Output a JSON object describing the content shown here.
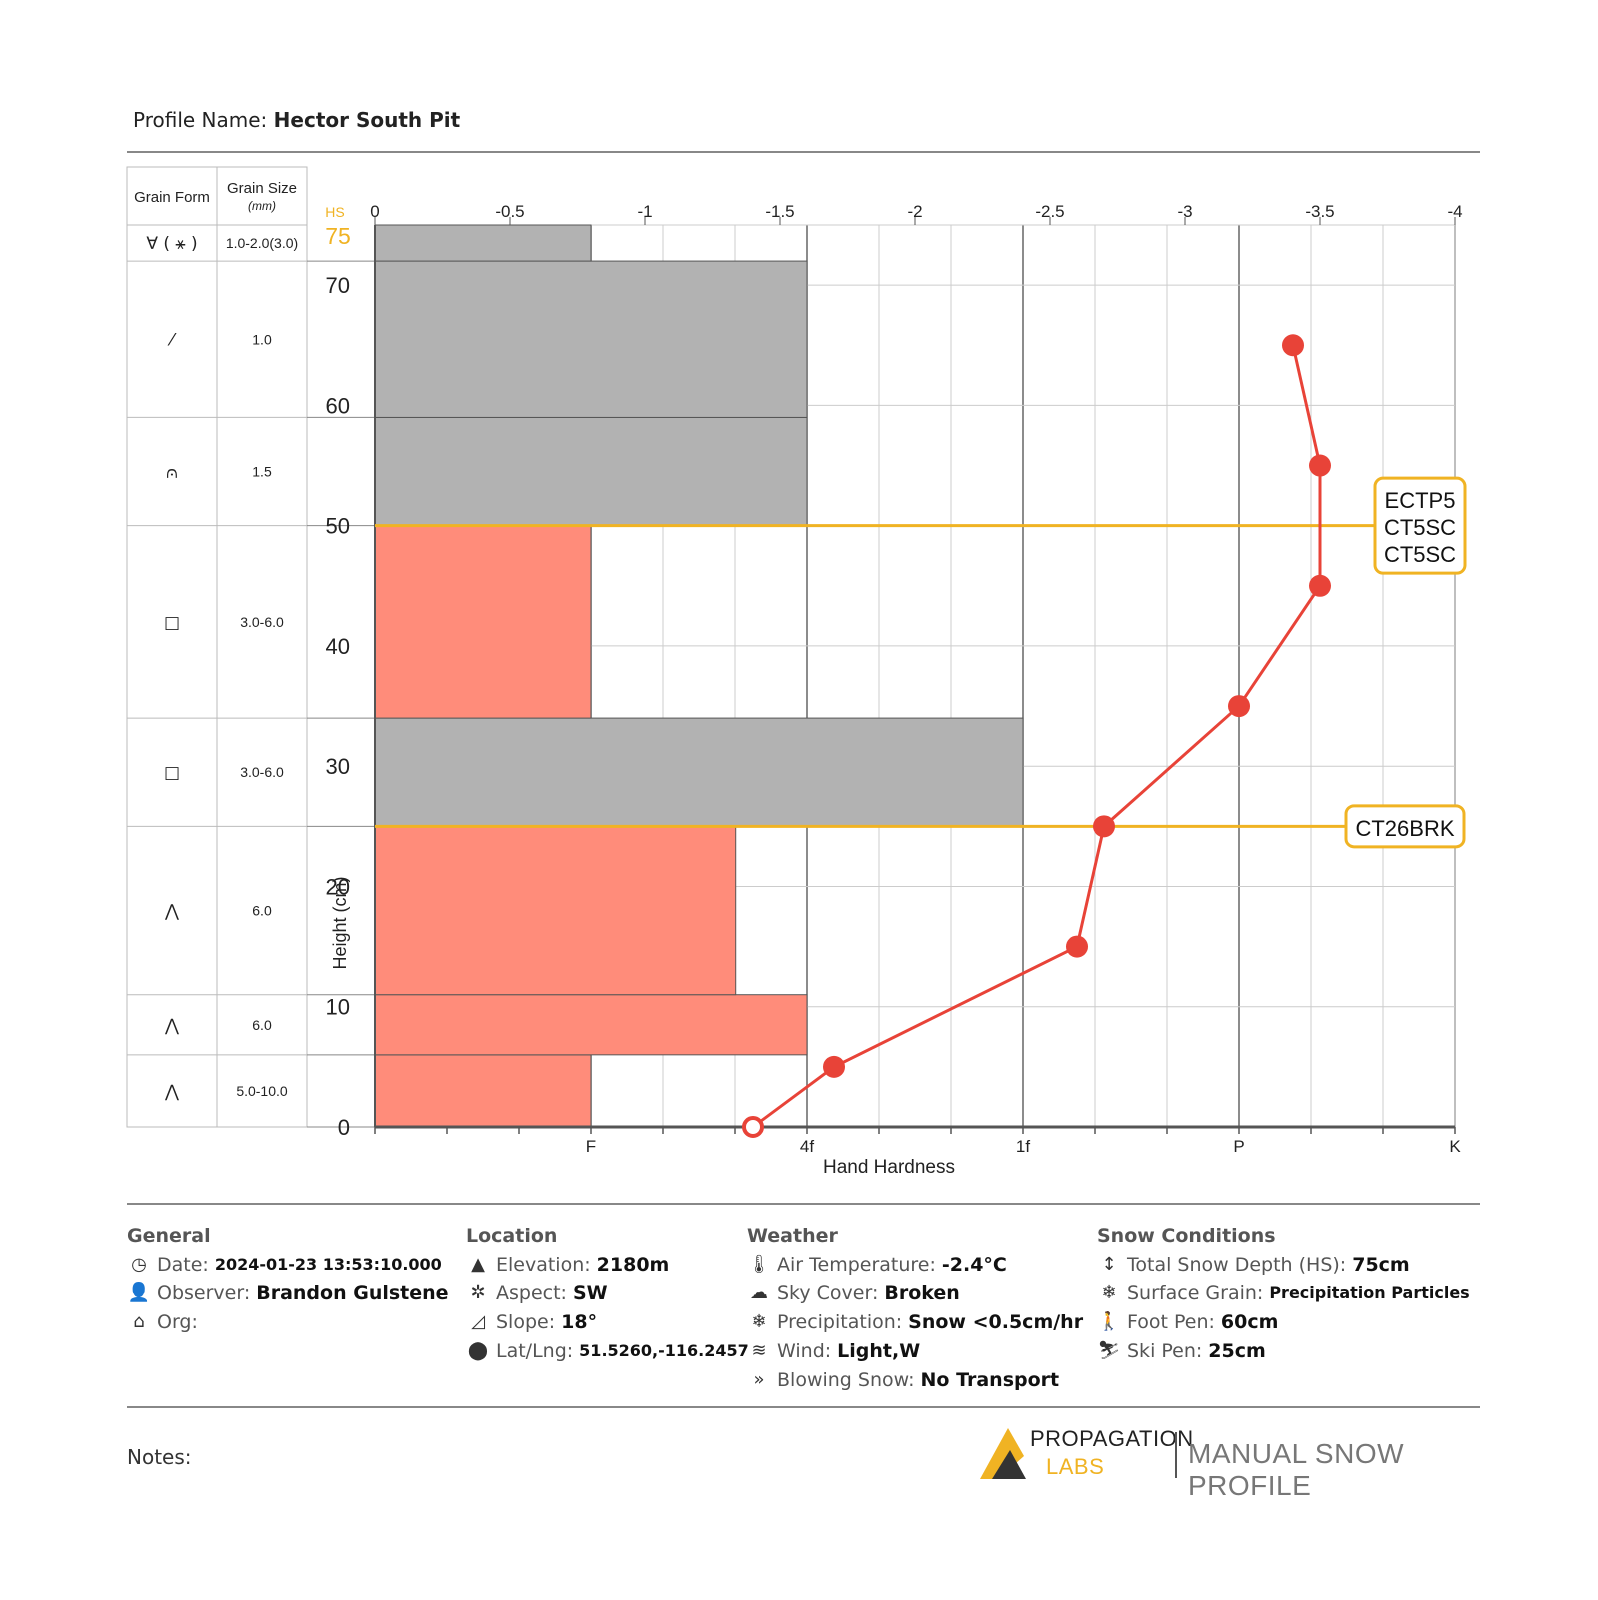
{
  "header": {
    "profile_label": "Profile Name:",
    "profile_name": "Hector South Pit"
  },
  "chart_data": {
    "type": "bar",
    "ylabel": "Height (cm)",
    "xlabel": "Hand Hardness",
    "hs_label": "HS",
    "hs_value": 75,
    "ylim": [
      0,
      75
    ],
    "top_axis": {
      "range": [
        0,
        -4
      ],
      "ticks": [
        "0",
        "-0.5",
        "-1",
        "-1.5",
        "-2",
        "-2.5",
        "-3",
        "-3.5",
        "-4"
      ]
    },
    "y_ticks": [
      "0",
      "10",
      "20",
      "30",
      "40",
      "50",
      "60",
      "70"
    ],
    "hardness_ticks": [
      "F",
      "4f",
      "1f",
      "P",
      "K"
    ],
    "layers": [
      {
        "bottom": 0,
        "top": 6,
        "hardness": 1,
        "color": "#ff8c7a",
        "grain_form": "⋀",
        "grain_size": "5.0-10.0"
      },
      {
        "bottom": 6,
        "top": 11,
        "hardness": 2,
        "color": "#ff8c7a",
        "grain_form": "⋀",
        "grain_size": "6.0"
      },
      {
        "bottom": 11,
        "top": 25,
        "hardness": 1.67,
        "color": "#ff8c7a",
        "grain_form": "⋀",
        "grain_size": "6.0"
      },
      {
        "bottom": 25,
        "top": 34,
        "hardness": 3,
        "color": "#b2b2b2",
        "grain_form": "□",
        "grain_size": "3.0-6.0"
      },
      {
        "bottom": 34,
        "top": 50,
        "hardness": 1,
        "color": "#ff8c7a",
        "grain_form": "□",
        "grain_size": "3.0-6.0"
      },
      {
        "bottom": 50,
        "top": 59,
        "hardness": 2,
        "color": "#b2b2b2",
        "grain_form": "⩀",
        "grain_size": "1.5"
      },
      {
        "bottom": 59,
        "top": 72,
        "hardness": 2,
        "color": "#b2b2b2",
        "grain_form": "⁄",
        "grain_size": "1.0"
      },
      {
        "bottom": 72,
        "top": 75,
        "hardness": 1,
        "color": "#b2b2b2",
        "grain_form": "∀ ( ⚹ )",
        "grain_size": "1.0-2.0(3.0)"
      }
    ],
    "temperature_profile": {
      "color": "#e84338",
      "points": [
        {
          "height": 0,
          "temp": -1.4,
          "hollow": true
        },
        {
          "height": 5,
          "temp": -1.7
        },
        {
          "height": 15,
          "temp": -2.6
        },
        {
          "height": 25,
          "temp": -2.7
        },
        {
          "height": 35,
          "temp": -3.2
        },
        {
          "height": 45,
          "temp": -3.5
        },
        {
          "height": 55,
          "temp": -3.5
        },
        {
          "height": 65,
          "temp": -3.4
        }
      ]
    },
    "stability_tests": [
      {
        "height": 50,
        "results": [
          "ECTP5",
          "CT5SC",
          "CT5SC"
        ]
      },
      {
        "height": 25,
        "results": [
          "CT26BRK"
        ]
      }
    ],
    "table_headers": {
      "grain_form": "Grain Form",
      "grain_size": "Grain Size",
      "grain_size_unit": "(mm)"
    }
  },
  "footer": {
    "general": {
      "title": "General",
      "items": [
        {
          "icon": "clock-icon",
          "glyph": "◷",
          "label": "Date:",
          "value": "2024-01-23 13:53:10.000",
          "small": true
        },
        {
          "icon": "user-icon",
          "glyph": "👤",
          "label": "Observer:",
          "value": "Brandon Gulstene"
        },
        {
          "icon": "home-icon",
          "glyph": "⌂",
          "label": "Org:",
          "value": ""
        }
      ]
    },
    "location": {
      "title": "Location",
      "items": [
        {
          "icon": "mountain-icon",
          "glyph": "▲",
          "label": "Elevation:",
          "value": "2180m"
        },
        {
          "icon": "aspect-icon",
          "glyph": "✲",
          "label": "Aspect:",
          "value": "SW"
        },
        {
          "icon": "slope-icon",
          "glyph": "◿",
          "label": "Slope:",
          "value": "18°"
        },
        {
          "icon": "pin-icon",
          "glyph": "⬤",
          "label": "Lat/Lng:",
          "value": "51.5260,-116.2457",
          "small": true
        }
      ]
    },
    "weather": {
      "title": "Weather",
      "items": [
        {
          "icon": "thermometer-icon",
          "glyph": "🌡",
          "label": "Air Temperature:",
          "value": "-2.4°C"
        },
        {
          "icon": "cloud-icon",
          "glyph": "☁",
          "label": "Sky Cover:",
          "value": "Broken"
        },
        {
          "icon": "snowflake-icon",
          "glyph": "❄",
          "label": "Precipitation:",
          "value": "Snow <0.5cm/hr"
        },
        {
          "icon": "wind-icon",
          "glyph": "≋",
          "label": "Wind:",
          "value": "Light,W"
        },
        {
          "icon": "blowing-snow-icon",
          "glyph": "»",
          "label": "Blowing Snow:",
          "value": "No Transport"
        }
      ]
    },
    "snow": {
      "title": "Snow Conditions",
      "items": [
        {
          "icon": "depth-icon",
          "glyph": "↕",
          "label": "Total Snow Depth (HS):",
          "value": "75cm"
        },
        {
          "icon": "snowflake-icon",
          "glyph": "❄",
          "label": "Surface Grain:",
          "value": "Precipitation Particles",
          "small": true
        },
        {
          "icon": "foot-pen-icon",
          "glyph": "🚶",
          "label": "Foot Pen:",
          "value": "60cm"
        },
        {
          "icon": "ski-pen-icon",
          "glyph": "⛷",
          "label": "Ski Pen:",
          "value": "25cm"
        }
      ]
    }
  },
  "notes": {
    "label": "Notes:"
  },
  "brand": {
    "line1": "PROPAGATION",
    "line2": "LABS",
    "tagline": "MANUAL SNOW PROFILE"
  }
}
